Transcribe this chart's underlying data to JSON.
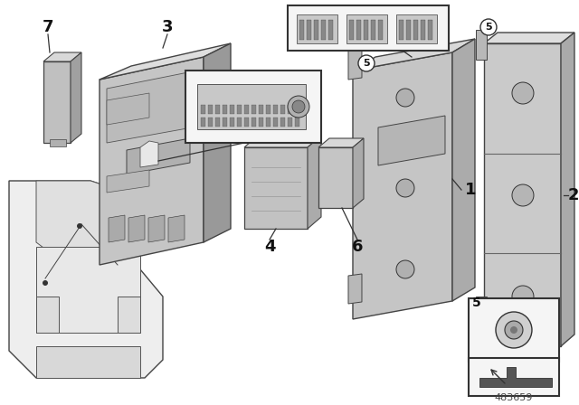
{
  "bg_color": "#ffffff",
  "part_number": "483659",
  "gray_light": "#c8c8c8",
  "gray_mid": "#aaaaaa",
  "gray_dark": "#888888",
  "outline_color": "#333333",
  "label_color": "#111111",
  "inset_bg": "#f0f0f0",
  "white": "#ffffff"
}
